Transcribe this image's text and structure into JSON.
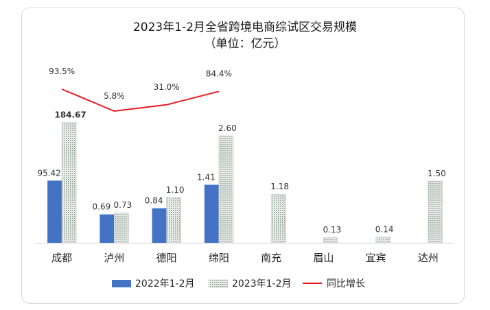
{
  "chart_data": {
    "type": "bar",
    "title": "2023年1-2月全省跨境电商综试区交易规模",
    "subtitle": "（单位：亿元）",
    "categories": [
      "成都",
      "泸州",
      "德阳",
      "绵阳",
      "南充",
      "眉山",
      "宜宾",
      "达州"
    ],
    "series": [
      {
        "name": "2022年1-2月",
        "color": "#4472c4",
        "values": [
          95.42,
          0.69,
          0.84,
          1.41,
          null,
          null,
          null,
          null
        ],
        "labels": [
          "95.42",
          "0.69",
          "0.84",
          "1.41",
          "",
          "",
          "",
          ""
        ]
      },
      {
        "name": "2023年1-2月",
        "color": "#a9b9ad",
        "values": [
          184.67,
          0.73,
          1.1,
          2.6,
          1.18,
          0.13,
          0.14,
          1.5
        ],
        "labels": [
          "184.67",
          "0.73",
          "1.10",
          "2.60",
          "1.18",
          "0.13",
          "0.14",
          "1.50"
        ]
      }
    ],
    "line": {
      "name": "同比增长",
      "color": "#e8191f",
      "values": [
        93.5,
        5.8,
        31.0,
        84.4
      ],
      "labels": [
        "93.5%",
        "5.8%",
        "31.0%",
        "84.4%"
      ]
    },
    "legend": "bottom"
  }
}
